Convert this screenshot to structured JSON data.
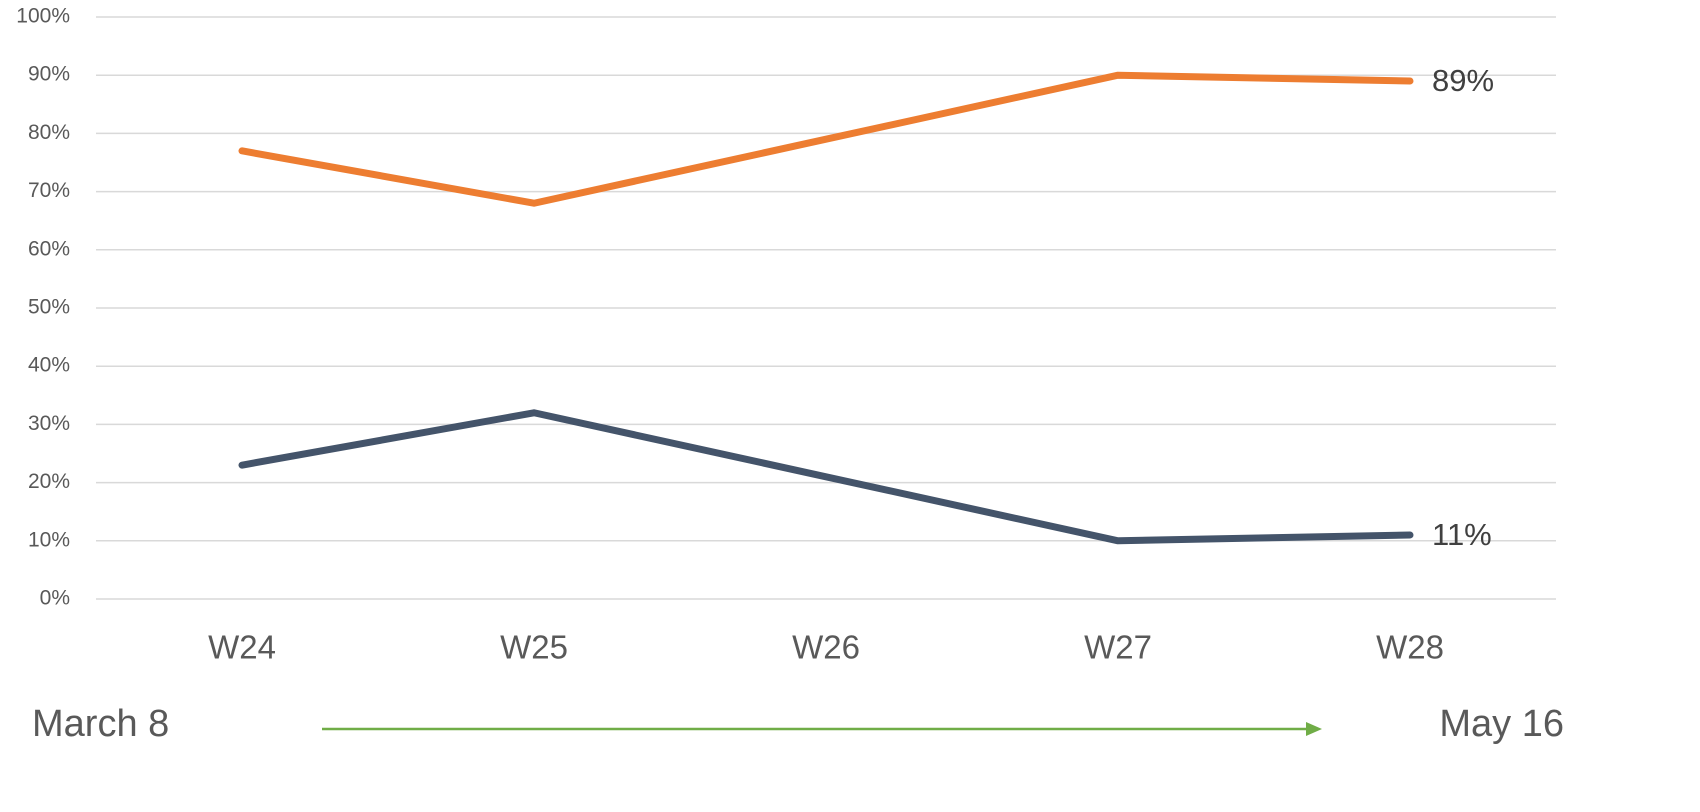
{
  "chart_data": {
    "type": "line",
    "categories": [
      "W24",
      "W25",
      "W26",
      "W27",
      "W28"
    ],
    "series": [
      {
        "color": "#ED7D31",
        "values": [
          77,
          68,
          79,
          90,
          89
        ],
        "value_labels": [
          null,
          null,
          null,
          null,
          "89%"
        ]
      },
      {
        "color": "#44546A",
        "values": [
          23,
          32,
          21,
          10,
          11
        ],
        "value_labels": [
          null,
          null,
          null,
          null,
          "11%"
        ]
      }
    ],
    "ylim": [
      0,
      100
    ],
    "yticks": [
      {
        "value": 0,
        "label": "0%"
      },
      {
        "value": 10,
        "label": "10%"
      },
      {
        "value": 20,
        "label": "20%"
      },
      {
        "value": 30,
        "label": "30%"
      },
      {
        "value": 40,
        "label": "40%"
      },
      {
        "value": 50,
        "label": "50%"
      },
      {
        "value": 60,
        "label": "60%"
      },
      {
        "value": 70,
        "label": "70%"
      },
      {
        "value": 80,
        "label": "80%"
      },
      {
        "value": 90,
        "label": "90%"
      },
      {
        "value": 100,
        "label": "100%"
      }
    ],
    "grid": true,
    "annotations": [
      "March 8",
      "May 16"
    ]
  }
}
